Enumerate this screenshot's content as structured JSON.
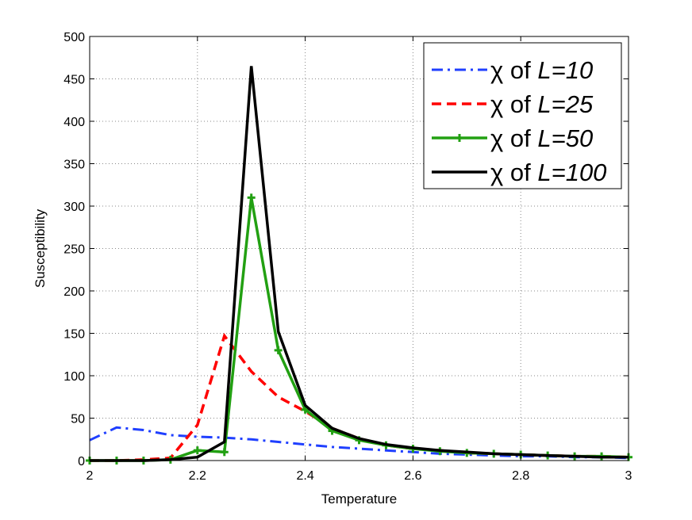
{
  "chart_data": {
    "type": "line",
    "title": "",
    "xlabel": "Temperature",
    "ylabel": "Susceptibility",
    "xlim": [
      2,
      3
    ],
    "ylim": [
      0,
      500
    ],
    "xticks": [
      2,
      2.2,
      2.4,
      2.6,
      2.8,
      3
    ],
    "xtick_labels": [
      "2",
      "2.2",
      "2.4",
      "2.6",
      "2.8",
      "3"
    ],
    "yticks": [
      0,
      50,
      100,
      150,
      200,
      250,
      300,
      350,
      400,
      450,
      500
    ],
    "ytick_labels": [
      "0",
      "50",
      "100",
      "150",
      "200",
      "250",
      "300",
      "350",
      "400",
      "450",
      "500"
    ],
    "grid": true,
    "legend_position": "top-right",
    "x": [
      2.0,
      2.05,
      2.1,
      2.15,
      2.2,
      2.25,
      2.3,
      2.35,
      2.4,
      2.45,
      2.5,
      2.55,
      2.6,
      2.65,
      2.7,
      2.75,
      2.8,
      2.85,
      2.9,
      2.95,
      3.0
    ],
    "series": [
      {
        "name": "χ of L=10",
        "legend_prefix": "χ of ",
        "legend_italic": "L=10",
        "color": "#1f3fff",
        "style": "dashdot",
        "marker": "none",
        "values": [
          24,
          39,
          36,
          30,
          28,
          27,
          25,
          22,
          19,
          16,
          14,
          12,
          10,
          8,
          7,
          6,
          5,
          5,
          4,
          4,
          3
        ]
      },
      {
        "name": "χ of L=25",
        "legend_prefix": "χ of ",
        "legend_italic": "L=25",
        "color": "#ff0000",
        "style": "dashed",
        "marker": "none",
        "values": [
          0,
          0,
          1,
          3,
          42,
          147,
          105,
          75,
          58,
          38,
          26,
          18,
          14,
          12,
          9,
          8,
          7,
          6,
          5,
          5,
          4
        ]
      },
      {
        "name": "χ of L=50",
        "legend_prefix": "χ of ",
        "legend_italic": "L=50",
        "color": "#22a012",
        "style": "solid",
        "marker": "plus",
        "values": [
          0,
          0,
          0,
          1,
          12,
          10,
          310,
          130,
          60,
          35,
          24,
          18,
          14,
          11,
          9,
          8,
          7,
          6,
          5,
          5,
          4
        ]
      },
      {
        "name": "χ of L=100",
        "legend_prefix": "χ of ",
        "legend_italic": "L=100",
        "color": "#000000",
        "style": "solid",
        "marker": "none",
        "values": [
          0,
          0,
          0,
          1,
          4,
          22,
          465,
          152,
          65,
          38,
          26,
          19,
          15,
          12,
          10,
          8,
          7,
          6,
          5,
          4,
          4
        ]
      }
    ]
  }
}
